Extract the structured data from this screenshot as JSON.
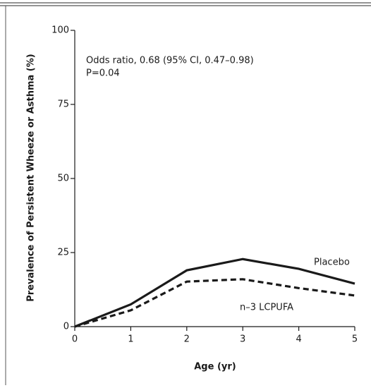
{
  "chart_data": {
    "type": "line",
    "x_label": "Age (yr)",
    "y_label": "Prevalence of Persistent Wheeze or Asthma (%)",
    "annotations": [
      "Odds ratio, 0.68 (95% CI, 0.47–0.98)",
      "P=0.04"
    ],
    "x": [
      0,
      1,
      2,
      3,
      4,
      5
    ],
    "series": [
      {
        "name": "Placebo",
        "color": "#1a1a1a",
        "dashed": false,
        "values": [
          0,
          7.5,
          19,
          22.8,
          19.5,
          14.5
        ]
      },
      {
        "name": "n–3 LCPUFA",
        "color": "#1a1a1a",
        "dashed": true,
        "values": [
          0,
          5.5,
          15.2,
          16,
          13,
          10.5
        ]
      }
    ],
    "xlim": [
      0,
      5
    ],
    "xticks": [
      0,
      1,
      2,
      3,
      4,
      5
    ],
    "ylim": [
      0,
      100
    ],
    "yticks": [
      0,
      25,
      50,
      75,
      100
    ]
  }
}
